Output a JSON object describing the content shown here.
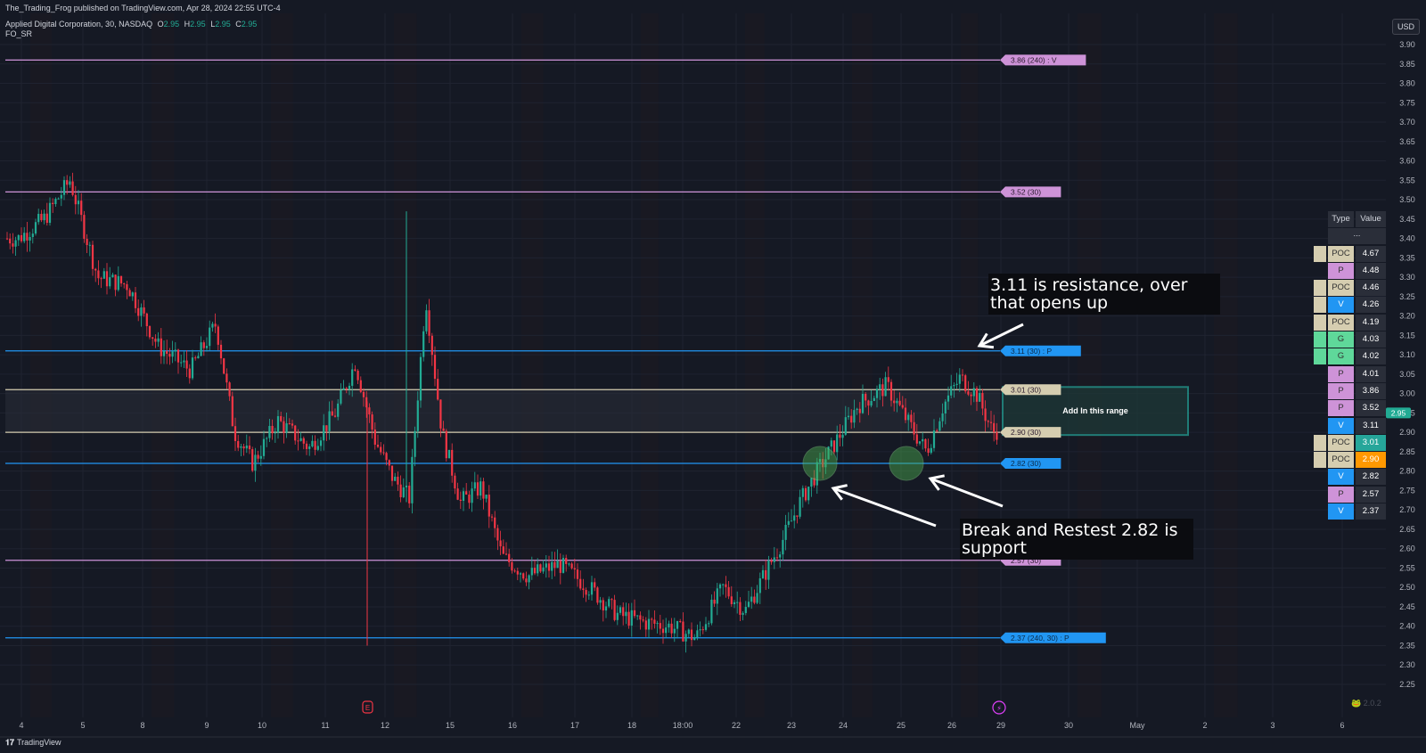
{
  "header": {
    "published": "The_Trading_Frog published on TradingView.com, Apr 28, 2024 22:55 UTC-4",
    "symbol_line": "Applied Digital Corporation, 30, NASDAQ",
    "ohlc": {
      "O": "2.95",
      "H": "2.95",
      "L": "2.95",
      "C": "2.95"
    },
    "indicator": "FO_SR"
  },
  "currency_button": "USD",
  "footer_brand": "TradingView",
  "watermark": "2.0.2",
  "colors": {
    "background": "#151924",
    "grid": "#1f2330",
    "up": "#22ab94",
    "down": "#f23645",
    "purple": "#ce93d8",
    "blue": "#2196f3",
    "beige": "#d5cdb0",
    "green": "#4caf50",
    "orange": "#ff9800",
    "range_box": "#26a69a",
    "price_badge": "#22ab94"
  },
  "chart_data": {
    "type": "candlestick",
    "timeframe": "30",
    "y_axis": {
      "min": 2.25,
      "max": 3.9,
      "step": 0.05
    },
    "x_ticks": [
      "4",
      "5",
      "8",
      "9",
      "10",
      "11",
      "12",
      "15",
      "16",
      "17",
      "18",
      "18:00",
      "22",
      "23",
      "24",
      "25",
      "26",
      "29",
      "30",
      "May",
      "2",
      "3",
      "6"
    ],
    "price_path": [
      {
        "x": "4",
        "price": 3.4
      },
      {
        "x": "4",
        "price": 3.45
      },
      {
        "x": "4",
        "price": 3.55
      },
      {
        "x": "5",
        "price": 3.3
      },
      {
        "x": "5",
        "price": 3.28
      },
      {
        "x": "8",
        "price": 3.12
      },
      {
        "x": "8",
        "price": 3.06
      },
      {
        "x": "9",
        "price": 3.18
      },
      {
        "x": "9",
        "price": 2.9
      },
      {
        "x": "9",
        "price": 2.82
      },
      {
        "x": "10",
        "price": 2.93
      },
      {
        "x": "10",
        "price": 2.86
      },
      {
        "x": "11",
        "price": 2.95
      },
      {
        "x": "11",
        "price": 3.08
      },
      {
        "x": "11",
        "price": 2.88
      },
      {
        "x": "12",
        "price": 2.78
      },
      {
        "x": "12",
        "price": 2.73
      },
      {
        "x": "12",
        "price": 3.25
      },
      {
        "x": "12",
        "price": 2.9
      },
      {
        "x": "15",
        "price": 2.72
      },
      {
        "x": "15",
        "price": 2.76
      },
      {
        "x": "15",
        "price": 2.58
      },
      {
        "x": "16",
        "price": 2.53
      },
      {
        "x": "16",
        "price": 2.56
      },
      {
        "x": "17",
        "price": 2.5
      },
      {
        "x": "17",
        "price": 2.43
      },
      {
        "x": "18",
        "price": 2.41
      },
      {
        "x": "18",
        "price": 2.4
      },
      {
        "x": "18:00",
        "price": 2.37
      },
      {
        "x": "18:00",
        "price": 2.5
      },
      {
        "x": "22",
        "price": 2.44
      },
      {
        "x": "22",
        "price": 2.53
      },
      {
        "x": "22",
        "price": 2.62
      },
      {
        "x": "23",
        "price": 2.72
      },
      {
        "x": "23",
        "price": 2.8
      },
      {
        "x": "23",
        "price": 2.87
      },
      {
        "x": "24",
        "price": 2.97
      },
      {
        "x": "24",
        "price": 3.02
      },
      {
        "x": "25",
        "price": 2.92
      },
      {
        "x": "25",
        "price": 2.85
      },
      {
        "x": "25",
        "price": 2.97
      },
      {
        "x": "26",
        "price": 3.04
      },
      {
        "x": "26",
        "price": 3.0
      },
      {
        "x": "26",
        "price": 2.9
      },
      {
        "x": "29",
        "price": 2.95
      }
    ],
    "levels": [
      {
        "value": 3.86,
        "label": "3.86 (240) : V",
        "color": "#ce93d8"
      },
      {
        "value": 3.52,
        "label": "3.52 (30)",
        "color": "#ce93d8"
      },
      {
        "value": 3.11,
        "label": "3.11 (30) : P",
        "color": "#2196f3"
      },
      {
        "value": 3.01,
        "label": "3.01 (30)",
        "color": "#d5cdb0"
      },
      {
        "value": 2.9,
        "label": "2.90 (30)",
        "color": "#d5cdb0"
      },
      {
        "value": 2.82,
        "label": "2.82 (30)",
        "color": "#2196f3"
      },
      {
        "value": 2.57,
        "label": "2.57 (30)",
        "color": "#ce93d8"
      },
      {
        "value": 2.37,
        "label": "2.37 (240, 30) : P",
        "color": "#2196f3"
      }
    ],
    "range_box": {
      "from": 2.9,
      "to": 3.01,
      "label": "Add In this range"
    },
    "last_price": "2.95",
    "annotations": [
      {
        "text": "3.11 is resistance, over that opens up"
      },
      {
        "text": "Break and Restest 2.82 is support"
      }
    ],
    "event_markers": [
      "E",
      "⚡"
    ]
  },
  "levels_table": {
    "headers": [
      "Type",
      "Value"
    ],
    "subheader": "...",
    "rows": [
      {
        "type": "POC",
        "value": "4.67",
        "type_color": "#d5cdb0",
        "swatch": "#d5cdb0",
        "value_color": "#2a2e39"
      },
      {
        "type": "P",
        "value": "4.48",
        "type_color": "#ce93d8",
        "swatch": "",
        "value_color": "#2a2e39"
      },
      {
        "type": "POC",
        "value": "4.46",
        "type_color": "#d5cdb0",
        "swatch": "#d5cdb0",
        "value_color": "#2a2e39"
      },
      {
        "type": "V",
        "value": "4.26",
        "type_color": "#2196f3",
        "swatch": "#d5cdb0",
        "value_color": "#2a2e39"
      },
      {
        "type": "POC",
        "value": "4.19",
        "type_color": "#d5cdb0",
        "swatch": "#d5cdb0",
        "value_color": "#2a2e39"
      },
      {
        "type": "G",
        "value": "4.03",
        "type_color": "#5fd89a",
        "swatch": "#5fd89a",
        "value_color": "#2a2e39"
      },
      {
        "type": "G",
        "value": "4.02",
        "type_color": "#5fd89a",
        "swatch": "#5fd89a",
        "value_color": "#2a2e39"
      },
      {
        "type": "P",
        "value": "4.01",
        "type_color": "#ce93d8",
        "swatch": "",
        "value_color": "#2a2e39"
      },
      {
        "type": "P",
        "value": "3.86",
        "type_color": "#ce93d8",
        "swatch": "",
        "value_color": "#2a2e39"
      },
      {
        "type": "P",
        "value": "3.52",
        "type_color": "#ce93d8",
        "swatch": "",
        "value_color": "#2a2e39"
      },
      {
        "type": "V",
        "value": "3.11",
        "type_color": "#2196f3",
        "swatch": "",
        "value_color": "#2a2e39"
      },
      {
        "type": "POC",
        "value": "3.01",
        "type_color": "#d5cdb0",
        "swatch": "#d5cdb0",
        "value_color": "#26a69a"
      },
      {
        "type": "POC",
        "value": "2.90",
        "type_color": "#d5cdb0",
        "swatch": "#d5cdb0",
        "value_color": "#ff9800"
      },
      {
        "type": "V",
        "value": "2.82",
        "type_color": "#2196f3",
        "swatch": "",
        "value_color": "#2a2e39"
      },
      {
        "type": "P",
        "value": "2.57",
        "type_color": "#ce93d8",
        "swatch": "",
        "value_color": "#2a2e39"
      },
      {
        "type": "V",
        "value": "2.37",
        "type_color": "#2196f3",
        "swatch": "",
        "value_color": "#2a2e39"
      }
    ]
  }
}
